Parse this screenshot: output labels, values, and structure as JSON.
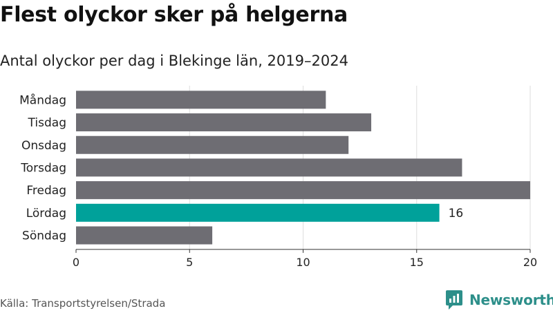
{
  "header": {
    "title": "Flest olyckor sker på helgerna",
    "subtitle": "Antal olyckor per dag i Blekinge län, 2019–2024"
  },
  "footer": {
    "source": "Källa: Transportstyrelsen/Strada",
    "brand_name": "Newsworthy",
    "brand_icon": "newsworthy-logo-icon",
    "brand_color": "#2d8f8a"
  },
  "chart_data": {
    "type": "bar",
    "orientation": "horizontal",
    "title": "Flest olyckor sker på helgerna",
    "subtitle": "Antal olyckor per dag i Blekinge län, 2019–2024",
    "categories": [
      "Måndag",
      "Tisdag",
      "Onsdag",
      "Torsdag",
      "Fredag",
      "Lördag",
      "Söndag"
    ],
    "values": [
      11,
      13,
      12,
      17,
      20,
      16,
      6
    ],
    "xlim": [
      0,
      20
    ],
    "xticks": [
      0,
      5,
      10,
      15,
      20
    ],
    "grid": true,
    "highlight_index": 5,
    "labeled_index": 5,
    "colors": {
      "bar": "#6e6d73",
      "highlight": "#00a19a",
      "grid": "#dddddd",
      "axis": "#333333"
    }
  }
}
